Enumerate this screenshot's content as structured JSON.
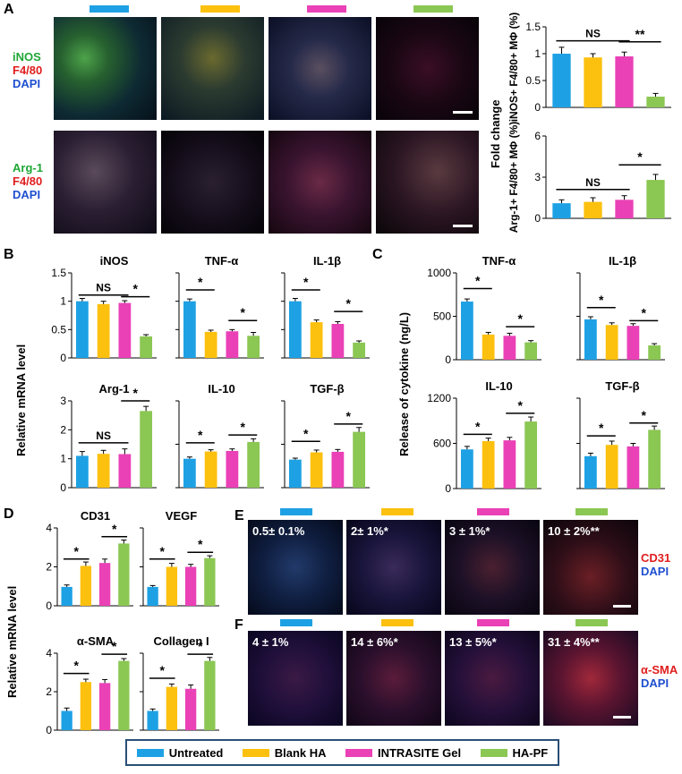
{
  "colors": {
    "untreated": "#1ea1e4",
    "blank_ha": "#fcc00e",
    "intrasite": "#ea41b6",
    "ha_pf": "#8bc753"
  },
  "panels": {
    "A": "A",
    "B": "B",
    "C": "C",
    "D": "D",
    "E": "E",
    "F": "F"
  },
  "stains": {
    "inos": [
      "iNOS",
      "F4/80",
      "DAPI"
    ],
    "arg1": [
      "Arg-1",
      "F4/80",
      "DAPI"
    ],
    "cd31": [
      "CD31",
      "DAPI"
    ],
    "asma": [
      "α-SMA",
      "DAPI"
    ]
  },
  "shared": {
    "fold_change": "Fold change",
    "rel_mrna": "Relative mRNA  level",
    "release": "Release of cytokine (ng/L)"
  },
  "percent_E": [
    "0.5± 0.1%",
    "2± 1%",
    "3 ± 1%",
    "10 ± 2%"
  ],
  "percent_E_stars": [
    "",
    "*",
    "*",
    "**"
  ],
  "percent_F": [
    "4 ± 1%",
    "14 ± 6%",
    "13 ± 5%",
    "31 ± 4%"
  ],
  "percent_F_stars": [
    "",
    "*",
    "*",
    "**"
  ],
  "legend": [
    "Untreated",
    "Blank HA",
    "INTRASITE Gel",
    "HA-PF"
  ],
  "chart_data": [
    {
      "id": "A1",
      "type": "bar",
      "ylabel": "iNOS+ F4/80+ MΦ (%)",
      "ylim": [
        0,
        1.5
      ],
      "yticks": [
        "0",
        "0.5",
        "1",
        "1.5"
      ],
      "values": [
        1.0,
        0.93,
        0.95,
        0.2
      ],
      "errors": [
        0.12,
        0.07,
        0.08,
        0.06
      ],
      "annotations": [
        {
          "g": [
            0,
            2
          ],
          "text": "NS",
          "level": 1.24
        },
        {
          "g": [
            2,
            3
          ],
          "text": "**",
          "level": 1.22
        }
      ]
    },
    {
      "id": "A2",
      "type": "bar",
      "ylabel": "Arg-1+ F4/80+ MΦ (%)",
      "ylim": [
        0,
        6
      ],
      "yticks": [
        "0",
        "3",
        "6"
      ],
      "values": [
        1.1,
        1.2,
        1.35,
        2.8
      ],
      "errors": [
        0.25,
        0.3,
        0.3,
        0.4
      ],
      "annotations": [
        {
          "g": [
            0,
            2
          ],
          "text": "NS",
          "level": 2.1
        },
        {
          "g": [
            2,
            3
          ],
          "text": "*",
          "level": 3.9
        }
      ]
    },
    {
      "id": "B1",
      "type": "bar",
      "title": "iNOS",
      "ylim": [
        0,
        1.5
      ],
      "yticks": [
        "0",
        "0.5",
        "1",
        "1.5"
      ],
      "values": [
        1.0,
        0.95,
        0.97,
        0.38
      ],
      "errors": [
        0.05,
        0.05,
        0.04,
        0.03
      ],
      "annotations": [
        {
          "g": [
            0,
            2
          ],
          "text": "NS",
          "level": 1.11
        },
        {
          "g": [
            2,
            3
          ],
          "text": "*",
          "level": 1.08
        }
      ]
    },
    {
      "id": "B2",
      "type": "bar",
      "title": "TNF-α",
      "ylim": [
        0,
        1.5
      ],
      "yticks": [],
      "values": [
        1.0,
        0.46,
        0.47,
        0.39
      ],
      "errors": [
        0.04,
        0.03,
        0.03,
        0.06
      ],
      "annotations": [
        {
          "g": [
            0,
            1
          ],
          "text": "*",
          "level": 1.2
        },
        {
          "g": [
            2,
            3
          ],
          "text": "*",
          "level": 0.66
        }
      ]
    },
    {
      "id": "B3",
      "type": "bar",
      "title": "IL-1β",
      "ylim": [
        0,
        1.5
      ],
      "yticks": [],
      "values": [
        1.0,
        0.63,
        0.6,
        0.27
      ],
      "errors": [
        0.05,
        0.04,
        0.04,
        0.03
      ],
      "annotations": [
        {
          "g": [
            0,
            1
          ],
          "text": "*",
          "level": 1.2
        },
        {
          "g": [
            2,
            3
          ],
          "text": "*",
          "level": 0.82
        }
      ]
    },
    {
      "id": "B4",
      "type": "bar",
      "title": "Arg-1",
      "ylim": [
        0,
        3
      ],
      "yticks": [
        "0",
        "1",
        "2",
        "3"
      ],
      "values": [
        1.1,
        1.17,
        1.16,
        2.65
      ],
      "errors": [
        0.15,
        0.12,
        0.18,
        0.16
      ],
      "annotations": [
        {
          "g": [
            0,
            2
          ],
          "text": "NS",
          "level": 1.55
        },
        {
          "g": [
            2,
            3
          ],
          "text": "*",
          "level": 3.0
        }
      ]
    },
    {
      "id": "B5",
      "type": "bar",
      "title": "IL-10",
      "ylim": [
        0,
        3
      ],
      "yticks": [],
      "values": [
        1.0,
        1.25,
        1.27,
        1.58
      ],
      "errors": [
        0.06,
        0.06,
        0.07,
        0.11
      ],
      "annotations": [
        {
          "g": [
            0,
            1
          ],
          "text": "*",
          "level": 1.55
        },
        {
          "g": [
            2,
            3
          ],
          "text": "*",
          "level": 1.82
        }
      ]
    },
    {
      "id": "B6",
      "type": "bar",
      "title": "TGF-β",
      "ylim": [
        0,
        3
      ],
      "yticks": [],
      "values": [
        0.97,
        1.22,
        1.24,
        1.93
      ],
      "errors": [
        0.05,
        0.08,
        0.08,
        0.15
      ],
      "annotations": [
        {
          "g": [
            0,
            1
          ],
          "text": "*",
          "level": 1.6
        },
        {
          "g": [
            2,
            3
          ],
          "text": "*",
          "level": 2.2
        }
      ]
    },
    {
      "id": "C1",
      "type": "bar",
      "title": "TNF-α",
      "ylim": [
        0,
        1000
      ],
      "yticks": [
        "0",
        "500",
        "1000"
      ],
      "values": [
        670,
        290,
        275,
        200
      ],
      "errors": [
        30,
        25,
        30,
        20
      ],
      "annotations": [
        {
          "g": [
            0,
            1
          ],
          "text": "*",
          "level": 820
        },
        {
          "g": [
            2,
            3
          ],
          "text": "*",
          "level": 380
        }
      ]
    },
    {
      "id": "C2",
      "type": "bar",
      "title": "IL-1β",
      "ylim": [
        0,
        1000
      ],
      "yticks": [],
      "values": [
        465,
        400,
        390,
        165
      ],
      "errors": [
        30,
        25,
        25,
        20
      ],
      "annotations": [
        {
          "g": [
            0,
            1
          ],
          "text": "*",
          "level": 600
        },
        {
          "g": [
            2,
            3
          ],
          "text": "*",
          "level": 450
        }
      ]
    },
    {
      "id": "C3",
      "type": "bar",
      "title": "IL-10",
      "ylim": [
        0,
        1200
      ],
      "yticks": [
        "0",
        "600",
        "1200"
      ],
      "values": [
        520,
        630,
        640,
        890
      ],
      "errors": [
        40,
        40,
        40,
        60
      ],
      "annotations": [
        {
          "g": [
            0,
            1
          ],
          "text": "*",
          "level": 720
        },
        {
          "g": [
            2,
            3
          ],
          "text": "*",
          "level": 1000
        }
      ]
    },
    {
      "id": "C4",
      "type": "bar",
      "title": "TGF-β",
      "ylim": [
        0,
        1200
      ],
      "yticks": [],
      "values": [
        430,
        580,
        560,
        780
      ],
      "errors": [
        40,
        50,
        40,
        50
      ],
      "annotations": [
        {
          "g": [
            0,
            1
          ],
          "text": "*",
          "level": 700
        },
        {
          "g": [
            2,
            3
          ],
          "text": "*",
          "level": 870
        }
      ]
    },
    {
      "id": "D1",
      "type": "bar",
      "title": "CD31",
      "ylim": [
        0,
        4
      ],
      "yticks": [
        "0",
        "2",
        "4"
      ],
      "values": [
        0.97,
        2.05,
        2.2,
        3.2
      ],
      "errors": [
        0.1,
        0.2,
        0.2,
        0.18
      ],
      "annotations": [
        {
          "g": [
            0,
            1
          ],
          "text": "*",
          "level": 2.4
        },
        {
          "g": [
            2,
            3
          ],
          "text": "*",
          "level": 3.55
        }
      ]
    },
    {
      "id": "D2",
      "type": "bar",
      "title": "VEGF",
      "ylim": [
        0,
        4
      ],
      "yticks": [],
      "values": [
        0.97,
        2.0,
        2.0,
        2.45
      ],
      "errors": [
        0.07,
        0.18,
        0.13,
        0.12
      ],
      "annotations": [
        {
          "g": [
            0,
            1
          ],
          "text": "*",
          "level": 2.4
        },
        {
          "g": [
            2,
            3
          ],
          "text": "*",
          "level": 2.75
        }
      ]
    },
    {
      "id": "D3",
      "type": "bar",
      "title": "α-SMA",
      "ylim": [
        0,
        4
      ],
      "yticks": [
        "0",
        "2",
        "4"
      ],
      "values": [
        1.0,
        2.5,
        2.45,
        3.6
      ],
      "errors": [
        0.15,
        0.15,
        0.18,
        0.12
      ],
      "annotations": [
        {
          "g": [
            0,
            1
          ],
          "text": "*",
          "level": 2.95
        },
        {
          "g": [
            2,
            3
          ],
          "text": "*",
          "level": 3.95
        }
      ]
    },
    {
      "id": "D4",
      "type": "bar",
      "title": "Collagen I",
      "ylim": [
        0,
        4
      ],
      "yticks": [],
      "values": [
        1.0,
        2.25,
        2.15,
        3.6
      ],
      "errors": [
        0.1,
        0.15,
        0.2,
        0.18
      ],
      "annotations": [
        {
          "g": [
            0,
            1
          ],
          "text": "*",
          "level": 2.7
        },
        {
          "g": [
            2,
            3
          ],
          "text": "*",
          "level": 3.95
        }
      ]
    }
  ]
}
